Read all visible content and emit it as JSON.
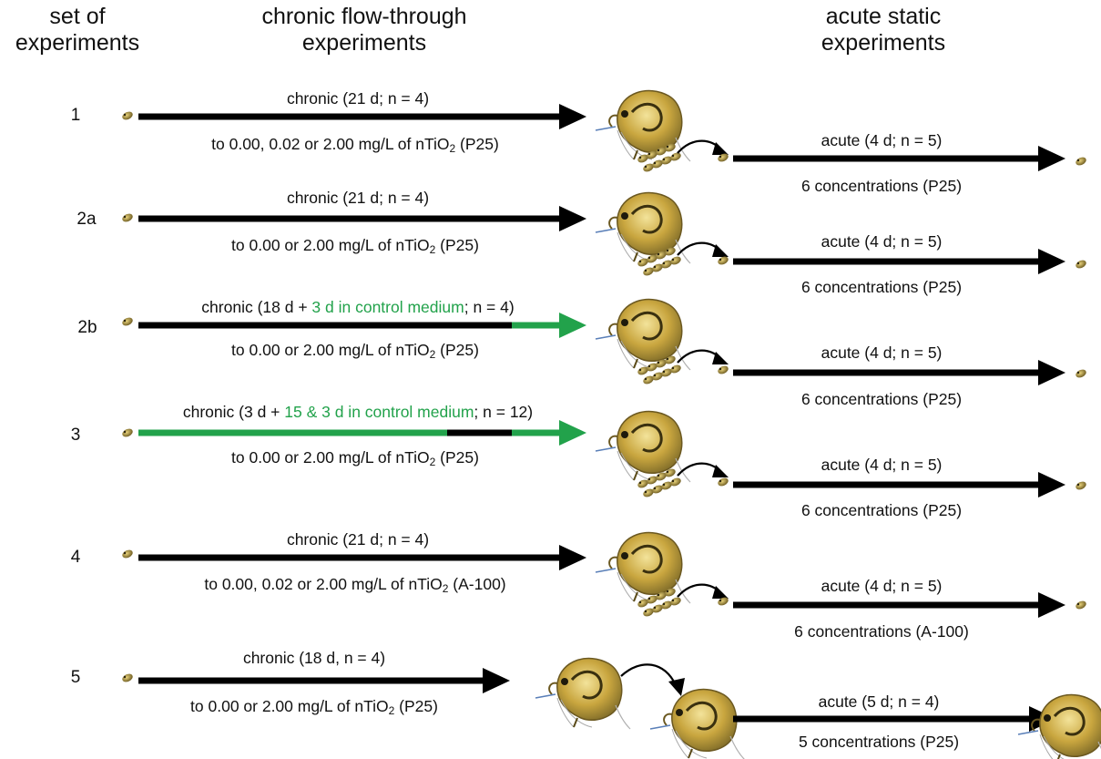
{
  "headers": {
    "set": [
      "set of",
      "experiments"
    ],
    "chronic": [
      "chronic flow-through",
      "experiments"
    ],
    "acute": [
      "acute static",
      "experiments"
    ]
  },
  "colors": {
    "arrow": "#000000",
    "control_medium": "#22a24b"
  },
  "icons": [
    "daphnia-neonate-icon",
    "daphnia-adult-icon",
    "daphnia-offspring-icon",
    "transfer-arrow-icon"
  ],
  "rows": [
    {
      "id": "1",
      "chronic": {
        "plain": [
          "chronic (21 d; n = 4)"
        ],
        "green": []
      },
      "exposure": {
        "pre": "to 0.00, 0.02 or 2.00 mg/L of nTiO",
        "sub": "2",
        "post": " (P25)"
      },
      "acute": "acute (4 d; n = 5)",
      "concentrations": "6 concentrations (P25)"
    },
    {
      "id": "2a",
      "chronic": {
        "plain": [
          "chronic (21 d; n = 4)"
        ],
        "green": []
      },
      "exposure": {
        "pre": "to 0.00 or 2.00 mg/L of nTiO",
        "sub": "2",
        "post": " (P25)"
      },
      "acute": "acute (4 d; n = 5)",
      "concentrations": "6 concentrations (P25)"
    },
    {
      "id": "2b",
      "chronic": {
        "plain": [
          "chronic (18 d + ",
          "; n = 4)"
        ],
        "green": [
          "3 d in control medium"
        ]
      },
      "exposure": {
        "pre": "to 0.00 or 2.00 mg/L of nTiO",
        "sub": "2",
        "post": " (P25)"
      },
      "acute": "acute (4 d; n = 5)",
      "concentrations": "6 concentrations (P25)"
    },
    {
      "id": "3",
      "chronic": {
        "plain": [
          "chronic (3 d + ",
          "; n = 12)"
        ],
        "green": [
          "15 & 3 d in control medium"
        ]
      },
      "exposure": {
        "pre": "to 0.00 or 2.00 mg/L of nTiO",
        "sub": "2",
        "post": " (P25)"
      },
      "acute": "acute (4 d; n = 5)",
      "concentrations": "6 concentrations (P25)"
    },
    {
      "id": "4",
      "chronic": {
        "plain": [
          "chronic (21 d; n = 4)"
        ],
        "green": []
      },
      "exposure": {
        "pre": "to 0.00, 0.02 or 2.00 mg/L of nTiO",
        "sub": "2",
        "post": " (A-100)"
      },
      "acute": "acute (4 d; n = 5)",
      "concentrations": "6 concentrations (A-100)"
    },
    {
      "id": "5",
      "chronic": {
        "plain": [
          "chronic (18 d, n = 4)"
        ],
        "green": []
      },
      "exposure": {
        "pre": "to 0.00 or 2.00 mg/L of nTiO",
        "sub": "2",
        "post": " (P25)"
      },
      "acute": "acute (5 d; n = 4)",
      "concentrations": "5 concentrations (P25)"
    }
  ]
}
